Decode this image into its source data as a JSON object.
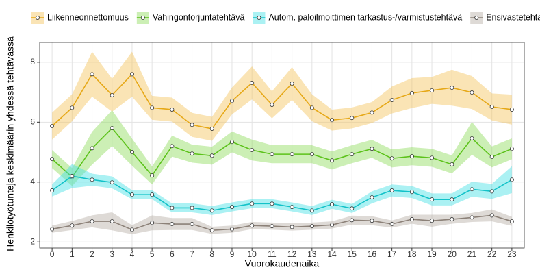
{
  "chart_data": {
    "type": "line",
    "x_label": "Vuorokaudenaika",
    "y_label": "Henkilötyötunteja keskimäärin yhdessä tehtävässä",
    "x": [
      0,
      1,
      2,
      3,
      4,
      5,
      6,
      7,
      8,
      9,
      10,
      11,
      12,
      13,
      14,
      15,
      16,
      17,
      18,
      19,
      20,
      21,
      22,
      23
    ],
    "xlim": [
      -0.62,
      23.62
    ],
    "xticks": [
      0,
      1,
      2,
      3,
      4,
      5,
      6,
      7,
      8,
      9,
      10,
      11,
      12,
      13,
      14,
      15,
      16,
      17,
      18,
      19,
      20,
      21,
      22,
      23
    ],
    "ylim": [
      1.8,
      8.66
    ],
    "yticks": [
      2,
      4,
      6,
      8
    ],
    "grid": true,
    "legend": "top",
    "series": [
      {
        "name": "Liikenneonnettomuus",
        "color": "#e6a817",
        "band_color": "#f5c35c",
        "values": [
          5.87,
          6.48,
          7.6,
          6.9,
          7.6,
          6.48,
          6.42,
          5.91,
          5.78,
          6.71,
          7.31,
          6.58,
          7.29,
          6.48,
          6.07,
          6.14,
          6.32,
          6.74,
          6.97,
          7.06,
          7.15,
          6.99,
          6.51,
          6.42
        ],
        "ci": [
          0.45,
          0.45,
          0.75,
          0.55,
          0.75,
          0.4,
          0.4,
          0.4,
          0.4,
          0.45,
          0.55,
          0.45,
          0.55,
          0.45,
          0.35,
          0.35,
          0.35,
          0.45,
          0.5,
          0.45,
          0.6,
          0.55,
          0.45,
          0.5
        ]
      },
      {
        "name": "Vahingontorjuntatehtävä",
        "color": "#5cc21a",
        "band_color": "#8fdc5c",
        "values": [
          4.77,
          4.17,
          5.13,
          5.8,
          5.0,
          4.22,
          5.2,
          4.95,
          4.88,
          5.34,
          5.07,
          4.93,
          4.93,
          4.93,
          4.72,
          4.93,
          5.11,
          4.79,
          4.86,
          4.81,
          4.59,
          5.46,
          4.84,
          5.11
        ],
        "ci": [
          0.3,
          0.3,
          0.55,
          0.6,
          0.45,
          0.3,
          0.35,
          0.3,
          0.3,
          0.35,
          0.35,
          0.3,
          0.3,
          0.3,
          0.3,
          0.3,
          0.3,
          0.3,
          0.3,
          0.3,
          0.3,
          0.55,
          0.35,
          0.35
        ]
      },
      {
        "name": "Autom. paloilmoittimen tarkastus-/varmistustehtävä",
        "color": "#12c2c8",
        "band_color": "#44e0e4",
        "values": [
          3.72,
          4.2,
          4.08,
          3.99,
          3.58,
          3.58,
          3.14,
          3.14,
          3.05,
          3.17,
          3.28,
          3.28,
          3.17,
          3.05,
          3.26,
          3.12,
          3.49,
          3.72,
          3.67,
          3.42,
          3.42,
          3.76,
          3.69,
          4.08
        ],
        "ci": [
          0.2,
          0.4,
          0.2,
          0.2,
          0.15,
          0.15,
          0.15,
          0.15,
          0.15,
          0.15,
          0.15,
          0.15,
          0.15,
          0.15,
          0.15,
          0.15,
          0.2,
          0.2,
          0.2,
          0.2,
          0.2,
          0.25,
          0.25,
          0.45
        ]
      },
      {
        "name": "Ensivastetehtävä",
        "color": "#8c8178",
        "band_color": "#b5ada5",
        "values": [
          2.43,
          2.55,
          2.69,
          2.69,
          2.41,
          2.64,
          2.6,
          2.6,
          2.39,
          2.43,
          2.55,
          2.53,
          2.5,
          2.53,
          2.57,
          2.73,
          2.71,
          2.6,
          2.76,
          2.71,
          2.76,
          2.82,
          2.89,
          2.69
        ],
        "ci": [
          0.12,
          0.15,
          0.2,
          0.3,
          0.15,
          0.25,
          0.2,
          0.2,
          0.12,
          0.12,
          0.12,
          0.12,
          0.12,
          0.12,
          0.12,
          0.15,
          0.15,
          0.12,
          0.15,
          0.2,
          0.15,
          0.15,
          0.2,
          0.15
        ]
      }
    ]
  }
}
